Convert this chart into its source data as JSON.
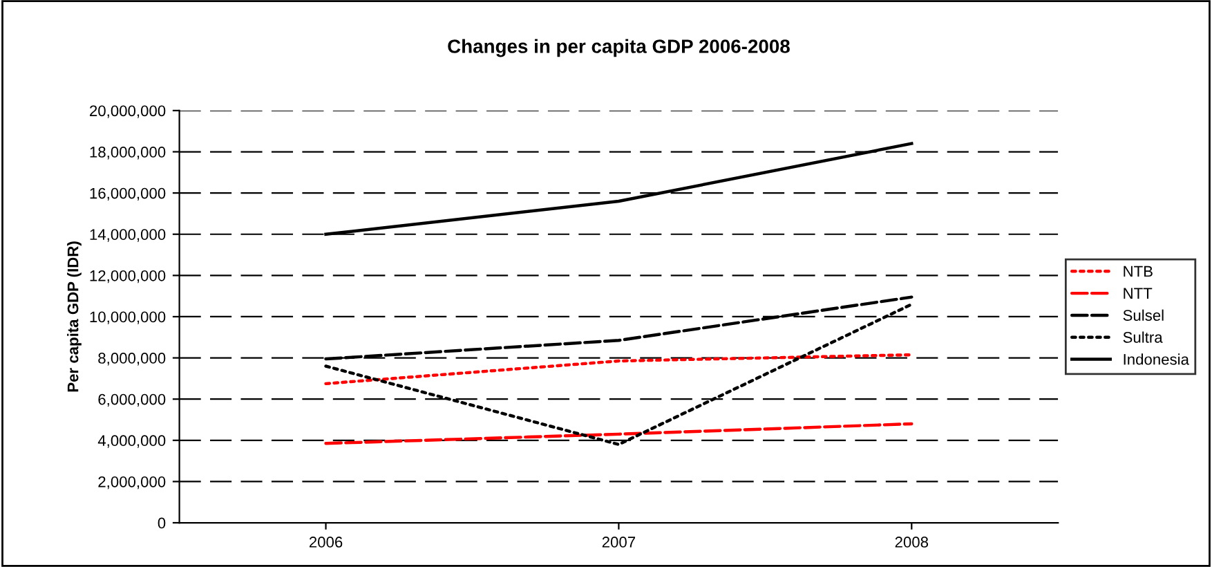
{
  "chart_data": {
    "type": "line",
    "title": "Changes in per capita GDP 2006-2008",
    "ylabel": "Per capita GDP (IDR)",
    "categories": [
      "2006",
      "2007",
      "2008"
    ],
    "series": [
      {
        "name": "NTB",
        "color": "#ff0000",
        "line_style": "dotted",
        "values": [
          6750000,
          7850000,
          8150000
        ]
      },
      {
        "name": "NTT",
        "color": "#ff0000",
        "line_style": "dashed",
        "values": [
          3850000,
          4300000,
          4800000
        ]
      },
      {
        "name": "Sulsel",
        "color": "#000000",
        "line_style": "dashed",
        "values": [
          7950000,
          8850000,
          10950000
        ]
      },
      {
        "name": "Sultra",
        "color": "#000000",
        "line_style": "dotted",
        "values": [
          7600000,
          3800000,
          10600000
        ]
      },
      {
        "name": "Indonesia",
        "color": "#000000",
        "line_style": "solid",
        "values": [
          14000000,
          15600000,
          18400000
        ]
      }
    ],
    "ylim": [
      0,
      20000000
    ],
    "yticks": [
      {
        "value": 0,
        "label": "0"
      },
      {
        "value": 2000000,
        "label": "2,000,000"
      },
      {
        "value": 4000000,
        "label": "4,000,000"
      },
      {
        "value": 6000000,
        "label": "6,000,000"
      },
      {
        "value": 8000000,
        "label": "8,000,000"
      },
      {
        "value": 10000000,
        "label": "10,000,000"
      },
      {
        "value": 12000000,
        "label": "12,000,000"
      },
      {
        "value": 14000000,
        "label": "14,000,000"
      },
      {
        "value": 16000000,
        "label": "16,000,000"
      },
      {
        "value": 18000000,
        "label": "18,000,000"
      },
      {
        "value": 20000000,
        "label": "20,000,000"
      }
    ],
    "grid": "y",
    "legend": "right",
    "marker": "none"
  }
}
